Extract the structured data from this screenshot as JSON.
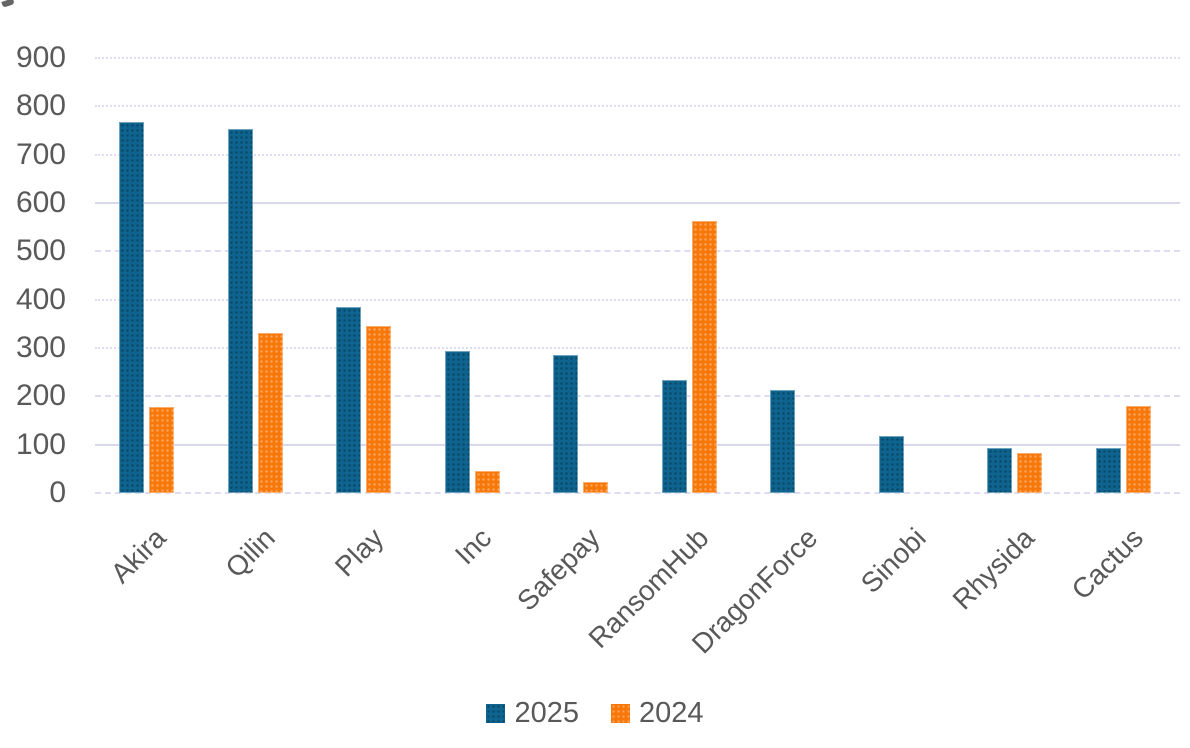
{
  "chart_data": {
    "type": "bar",
    "title": "",
    "categories": [
      "Akira",
      "Qilin",
      "Play",
      "Inc",
      "Safepay",
      "RansomHub",
      "DragonForce",
      "Sinobi",
      "Rhysida",
      "Cactus"
    ],
    "series": [
      {
        "name": "2025",
        "color": "#0F648F",
        "values": [
          768,
          753,
          385,
          293,
          285,
          234,
          214,
          117,
          93,
          93
        ]
      },
      {
        "name": "2024",
        "color": "#F87709",
        "values": [
          177,
          332,
          345,
          46,
          23,
          562,
          0,
          0,
          83,
          179
        ]
      }
    ],
    "xlabel": "",
    "ylabel": "",
    "ylim": [
      0,
      900
    ],
    "ytick_step": 100,
    "grid": "horizontal, light dotted/dashed lavender",
    "legend_position": "bottom-center",
    "bar_texture": "dotted pattern fill"
  },
  "axis": {
    "yticks": [
      "900",
      "800",
      "700",
      "600",
      "500",
      "400",
      "300",
      "200",
      "100",
      "0"
    ]
  },
  "legend": {
    "items": [
      {
        "label": "2025",
        "color": "#0F648F"
      },
      {
        "label": "2024",
        "color": "#F87709"
      }
    ]
  },
  "colors": {
    "series_2025": "#0F648F",
    "series_2024": "#F87709",
    "gridline": "#DCDCF2",
    "text": "#595959",
    "background": "#FFFFFF"
  }
}
